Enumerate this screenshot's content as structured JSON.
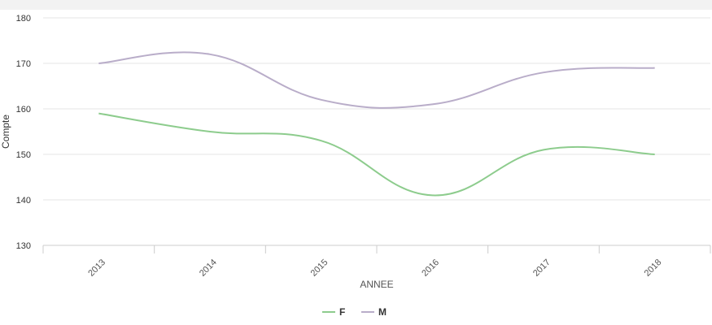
{
  "chart_data": {
    "type": "line",
    "title": "",
    "xlabel": "ANNEE",
    "ylabel": "Compte",
    "categories": [
      "2013",
      "2014",
      "2015",
      "2016",
      "2017",
      "2018"
    ],
    "ylim": [
      130,
      180
    ],
    "yticks": [
      "130",
      "140",
      "150",
      "160",
      "170",
      "180"
    ],
    "grid": true,
    "legend_position": "bottom",
    "series": [
      {
        "name": "F",
        "color": "#8dcc8d",
        "values": [
          159,
          155,
          153,
          141,
          151,
          150
        ]
      },
      {
        "name": "M",
        "color": "#b9adc9",
        "values": [
          170,
          172,
          162,
          161,
          168,
          169
        ]
      }
    ]
  }
}
